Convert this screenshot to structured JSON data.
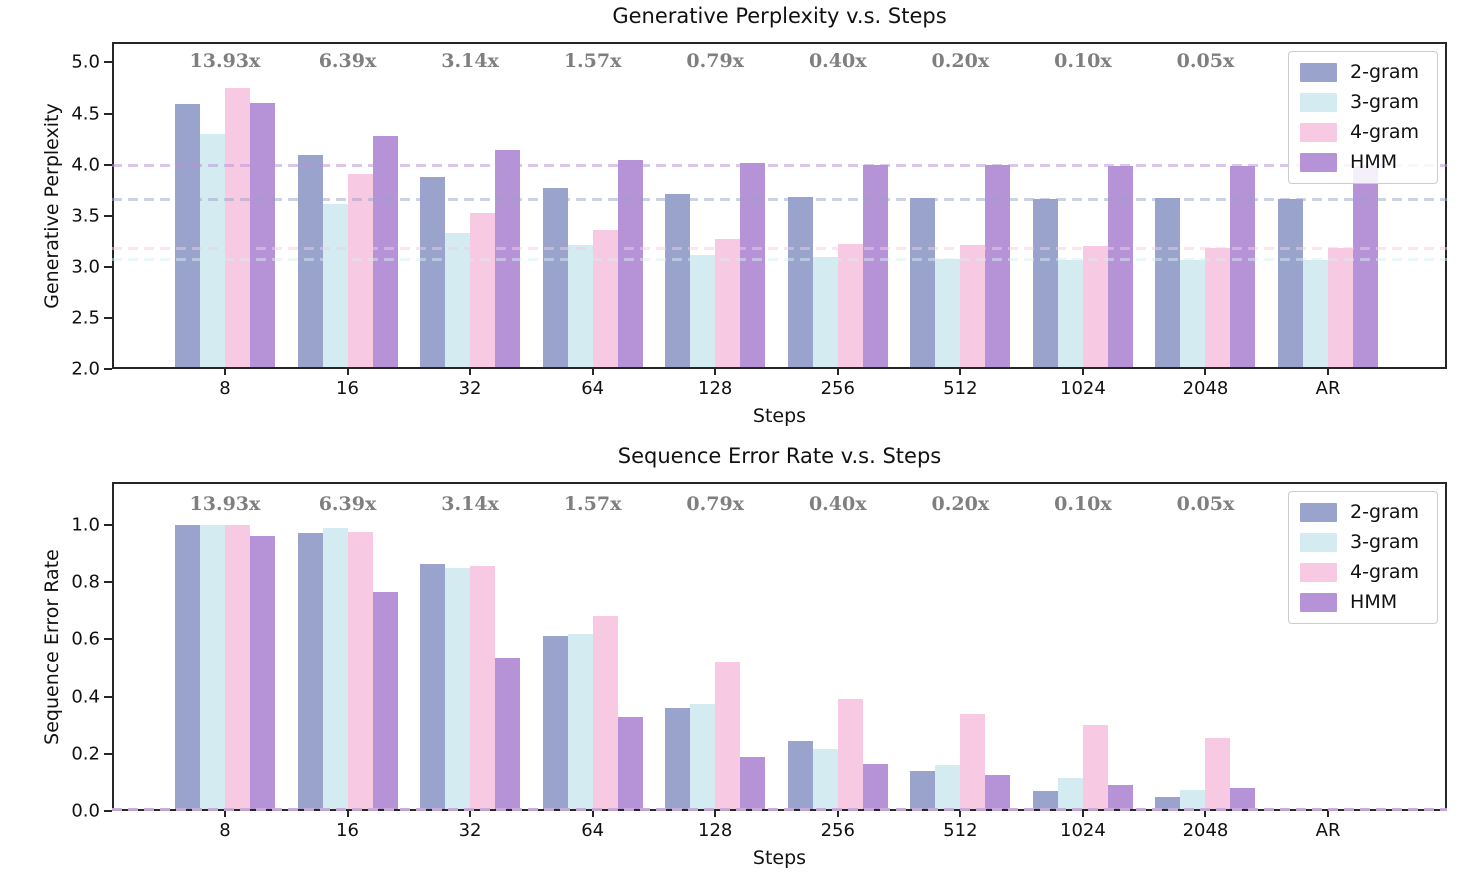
{
  "figure": {
    "bg": "#ffffff",
    "axis_color": "#262626",
    "annotation_color": "#7f7f7f"
  },
  "chart_data": [
    {
      "type": "bar",
      "title": "Generative Perplexity v.s. Steps",
      "xlabel": "Steps",
      "ylabel": "Generative Perplexity",
      "categories": [
        "8",
        "16",
        "32",
        "64",
        "128",
        "256",
        "512",
        "1024",
        "2048",
        "AR"
      ],
      "series": [
        {
          "name": "2-gram",
          "color": "#9aa3cb",
          "baseline": 3.66,
          "values": [
            4.59,
            4.09,
            3.88,
            3.77,
            3.71,
            3.68,
            3.67,
            3.66,
            3.67,
            3.66
          ]
        },
        {
          "name": "3-gram",
          "color": "#d4ecf1",
          "baseline": 3.07,
          "values": [
            4.3,
            3.61,
            3.33,
            3.21,
            3.12,
            3.1,
            3.08,
            3.07,
            3.07,
            3.07
          ]
        },
        {
          "name": "4-gram",
          "color": "#f8c9e2",
          "baseline": 3.18,
          "values": [
            4.75,
            3.91,
            3.53,
            3.36,
            3.27,
            3.22,
            3.21,
            3.2,
            3.18,
            3.18
          ]
        },
        {
          "name": "HMM",
          "color": "#b692d6",
          "baseline": 3.99,
          "values": [
            4.6,
            4.28,
            4.14,
            4.05,
            4.02,
            4.0,
            4.0,
            3.99,
            3.99,
            3.99
          ]
        }
      ],
      "annotations": [
        "13.93x",
        "6.39x",
        "3.14x",
        "1.57x",
        "0.79x",
        "0.40x",
        "0.20x",
        "0.10x",
        "0.05x"
      ],
      "annotation_y": 5.0,
      "ylim": [
        2.0,
        5.2
      ],
      "yticks": [
        2.0,
        2.5,
        3.0,
        3.5,
        4.0,
        4.5,
        5.0
      ],
      "ytick_labels": [
        "2.0",
        "2.5",
        "3.0",
        "3.5",
        "4.0",
        "4.5",
        "5.0"
      ],
      "grid": "off",
      "legend_position": "top-right"
    },
    {
      "type": "bar",
      "title": "Sequence Error Rate v.s. Steps",
      "xlabel": "Steps",
      "ylabel": "Sequence Error Rate",
      "categories": [
        "8",
        "16",
        "32",
        "64",
        "128",
        "256",
        "512",
        "1024",
        "2048",
        "AR"
      ],
      "series": [
        {
          "name": "2-gram",
          "color": "#9aa3cb",
          "baseline": 0.0,
          "values": [
            1.0,
            0.97,
            0.865,
            0.61,
            0.36,
            0.245,
            0.14,
            0.07,
            0.05,
            0.0
          ]
        },
        {
          "name": "3-gram",
          "color": "#d4ecf1",
          "baseline": 0.0,
          "values": [
            1.0,
            0.99,
            0.85,
            0.62,
            0.375,
            0.215,
            0.16,
            0.115,
            0.075,
            0.0
          ]
        },
        {
          "name": "4-gram",
          "color": "#f8c9e2",
          "baseline": 0.0,
          "values": [
            1.0,
            0.975,
            0.855,
            0.68,
            0.52,
            0.39,
            0.34,
            0.3,
            0.255,
            0.0
          ]
        },
        {
          "name": "HMM",
          "color": "#b692d6",
          "baseline": 0.0,
          "values": [
            0.96,
            0.765,
            0.535,
            0.33,
            0.19,
            0.165,
            0.125,
            0.09,
            0.08,
            0.0
          ]
        }
      ],
      "annotations": [
        "13.93x",
        "6.39x",
        "3.14x",
        "1.57x",
        "0.79x",
        "0.40x",
        "0.20x",
        "0.10x",
        "0.05x"
      ],
      "annotation_y": 1.07,
      "ylim": [
        0.0,
        1.15
      ],
      "yticks": [
        0.0,
        0.2,
        0.4,
        0.6,
        0.8,
        1.0
      ],
      "ytick_labels": [
        "0.0",
        "0.2",
        "0.4",
        "0.6",
        "0.8",
        "1.0"
      ],
      "grid": "off",
      "legend_position": "top-right"
    }
  ]
}
